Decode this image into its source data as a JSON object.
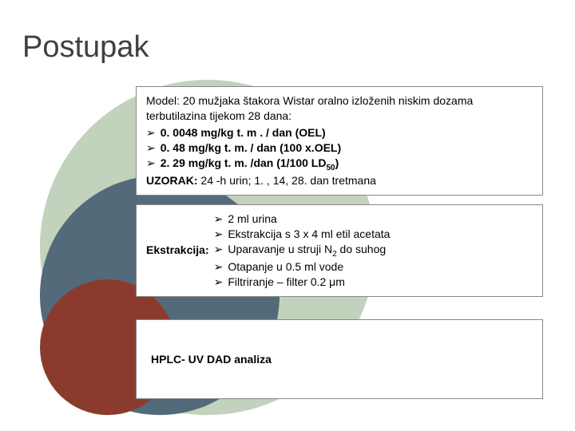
{
  "title": "Postupak",
  "colors": {
    "circle_big": "#c3d2bc",
    "circle_mid": "#536a7b",
    "circle_small": "#8b3b2e",
    "box_bg": "#ffffff",
    "box_border": "#888888",
    "title_color": "#404040",
    "text_color": "#000000"
  },
  "box1": {
    "intro": "Model: 20 mužjaka štakora Wistar oralno izloženih niskim dozama terbutilazina tijekom 28 dana:",
    "bullets": [
      "0. 0048 mg/kg t. m . / dan (OEL)",
      "0. 48 mg/kg t. m. / dan (100 x.OEL)",
      "2. 29 mg/kg t. m. /dan (1/100 LD"
    ],
    "bullet3_sub": "50",
    "bullet3_tail": ")",
    "uzorak_label": "UZORAK:",
    "uzorak_text": " 24 -h urin; 1. , 14, 28. dan tretmana"
  },
  "box2": {
    "label": "Ekstrakcija:",
    "bullets": [
      "2 ml urina",
      "Ekstrakcija s 3 x 4 ml etil acetata",
      "Uparavanje u struji N",
      "Otapanje u 0.5 ml vode",
      "Filtriranje – filter 0.2 μm"
    ],
    "bullet3_sub": "2",
    "bullet3_tail": " do suhog"
  },
  "box3": {
    "text": "HPLC- UV DAD analiza"
  },
  "bullet_glyph": "➢"
}
